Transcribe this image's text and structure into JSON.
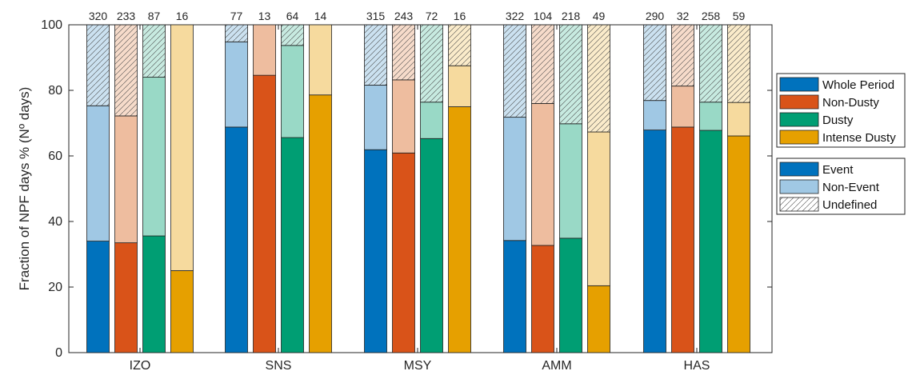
{
  "chart_data": {
    "type": "bar",
    "stacked": true,
    "ylabel": "Fraction of NPF days % (Nº days)",
    "ylim": [
      0,
      100
    ],
    "yticks": [
      0,
      20,
      40,
      60,
      80,
      100
    ],
    "grid": false,
    "categories": [
      "IZO",
      "SNS",
      "MSY",
      "AMM",
      "HAS"
    ],
    "series_names": [
      "Whole Period",
      "Non-Dusty",
      "Dusty",
      "Intense Dusty"
    ],
    "components": [
      "Event",
      "Non-Event",
      "Undefined"
    ],
    "colors": {
      "Whole Period": {
        "dark": "#0072BD",
        "light": "#A0C8E4"
      },
      "Non-Dusty": {
        "dark": "#D95319",
        "light": "#EEBD9F"
      },
      "Dusty": {
        "dark": "#009E73",
        "light": "#99D9C6"
      },
      "Intense Dusty": {
        "dark": "#E6A000",
        "light": "#F6DA9E"
      }
    },
    "groups": [
      {
        "category": "IZO",
        "bars": [
          {
            "series": "Whole Period",
            "count": "320",
            "event": 34,
            "non_event": 41.3
          },
          {
            "series": "Non-Dusty",
            "count": "233",
            "event": 33.5,
            "non_event": 38.7
          },
          {
            "series": "Dusty",
            "count": "87",
            "event": 35.6,
            "non_event": 48.4
          },
          {
            "series": "Intense Dusty",
            "count": "16",
            "event": 25,
            "non_event": 75
          }
        ]
      },
      {
        "category": "SNS",
        "bars": [
          {
            "series": "Whole Period",
            "count": "77",
            "event": 68.8,
            "non_event": 26
          },
          {
            "series": "Non-Dusty",
            "count": "13",
            "event": 84.6,
            "non_event": 15.4
          },
          {
            "series": "Dusty",
            "count": "64",
            "event": 65.6,
            "non_event": 28.1
          },
          {
            "series": "Intense Dusty",
            "count": "14",
            "event": 78.6,
            "non_event": 21.4
          }
        ]
      },
      {
        "category": "MSY",
        "bars": [
          {
            "series": "Whole Period",
            "count": "315",
            "event": 61.9,
            "non_event": 19.7
          },
          {
            "series": "Non-Dusty",
            "count": "243",
            "event": 60.9,
            "non_event": 22.3
          },
          {
            "series": "Dusty",
            "count": "72",
            "event": 65.3,
            "non_event": 11.1
          },
          {
            "series": "Intense Dusty",
            "count": "16",
            "event": 75,
            "non_event": 12.5
          }
        ]
      },
      {
        "category": "AMM",
        "bars": [
          {
            "series": "Whole Period",
            "count": "322",
            "event": 34.2,
            "non_event": 37.6
          },
          {
            "series": "Non-Dusty",
            "count": "104",
            "event": 32.7,
            "non_event": 43.3
          },
          {
            "series": "Dusty",
            "count": "218",
            "event": 34.9,
            "non_event": 34.9
          },
          {
            "series": "Intense Dusty",
            "count": "49",
            "event": 20.4,
            "non_event": 46.9
          }
        ]
      },
      {
        "category": "HAS",
        "bars": [
          {
            "series": "Whole Period",
            "count": "290",
            "event": 67.9,
            "non_event": 9
          },
          {
            "series": "Non-Dusty",
            "count": "32",
            "event": 68.8,
            "non_event": 12.5
          },
          {
            "series": "Dusty",
            "count": "258",
            "event": 67.8,
            "non_event": 8.6
          },
          {
            "series": "Intense Dusty",
            "count": "59",
            "event": 66.1,
            "non_event": 10.2
          }
        ]
      }
    ],
    "legend_placement": "right"
  }
}
